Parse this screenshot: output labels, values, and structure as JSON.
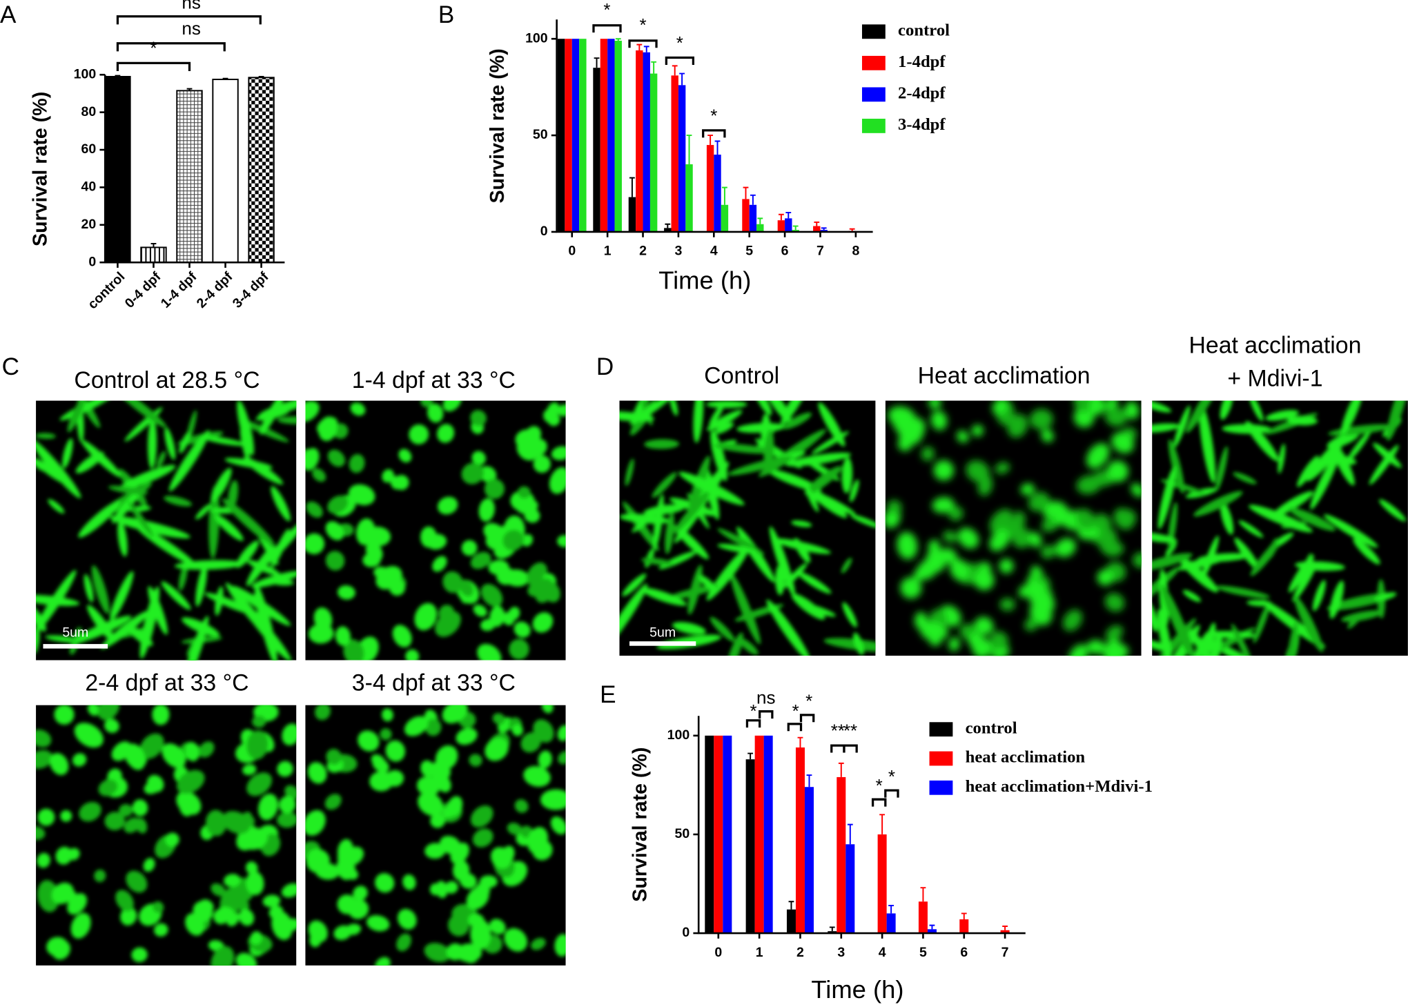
{
  "chart_data": [
    {
      "type": "bar",
      "panel": "A",
      "y_label": "Survival rate (%)",
      "categories": [
        "control",
        "0-4 dpf",
        "1-4 dpf",
        "2-4 dpf",
        "3-4 dpf"
      ],
      "values": [
        99,
        8,
        91.5,
        97.5,
        98.5
      ],
      "errors": [
        0.5,
        2,
        1,
        0.5,
        0.5
      ],
      "patterns": [
        "solid",
        "vlines",
        "grid",
        "empty",
        "checker"
      ],
      "color": "#000000",
      "ylim": [
        0,
        100
      ],
      "yticks": [
        0,
        20,
        40,
        60,
        80,
        100
      ],
      "annotations": [
        "ns",
        "ns",
        "*"
      ]
    },
    {
      "type": "grouped_bar",
      "panel": "B",
      "y_label": "Survival rate (%)",
      "x_label": "Time (h)",
      "categories": [
        "0",
        "1",
        "2",
        "3",
        "4",
        "5",
        "6",
        "7",
        "8"
      ],
      "series": [
        {
          "name": "control",
          "color": "#000000",
          "values": [
            100,
            85,
            18,
            2,
            0,
            0,
            0,
            0,
            0
          ],
          "errors": [
            0,
            5,
            10,
            2,
            0,
            0,
            0,
            0,
            0
          ]
        },
        {
          "name": "1-4dpf",
          "color": "#ff0000",
          "values": [
            100,
            100,
            94,
            81,
            45,
            17,
            6,
            3,
            0.5
          ],
          "errors": [
            0,
            0,
            3,
            5,
            5,
            6,
            3,
            2,
            1
          ]
        },
        {
          "name": "2-4dpf",
          "color": "#0000ff",
          "values": [
            100,
            100,
            93,
            76,
            40,
            14,
            7,
            1,
            0
          ],
          "errors": [
            0,
            0,
            3,
            6,
            7,
            5,
            3,
            1,
            0
          ]
        },
        {
          "name": "3-4dpf",
          "color": "#22e022",
          "values": [
            100,
            99,
            82,
            35,
            14,
            4,
            1,
            0,
            0
          ],
          "errors": [
            0,
            1,
            6,
            15,
            9,
            3,
            2,
            0,
            0
          ]
        }
      ],
      "ylim": [
        0,
        110
      ],
      "yticks": [
        0,
        50,
        100
      ],
      "legend": "upper right",
      "annotations": [
        "*",
        "*",
        "*",
        "*"
      ]
    },
    {
      "type": "grouped_bar",
      "panel": "E",
      "y_label": "Survival rate (%)",
      "x_label": "Time (h)",
      "categories": [
        "0",
        "1",
        "2",
        "3",
        "4",
        "5",
        "6",
        "7"
      ],
      "series": [
        {
          "name": "control",
          "color": "#000000",
          "values": [
            100,
            88,
            12,
            1,
            0,
            0,
            0,
            0
          ],
          "errors": [
            0,
            3,
            4,
            2,
            0,
            0,
            0,
            0
          ]
        },
        {
          "name": "heat acclimation",
          "color": "#ff0000",
          "values": [
            100,
            100,
            94,
            79,
            50,
            16,
            7,
            1.5
          ],
          "errors": [
            0,
            0,
            5,
            7,
            10,
            7,
            3,
            2
          ]
        },
        {
          "name": "heat acclimation+Mdivi-1",
          "color": "#0000ff",
          "values": [
            100,
            100,
            74,
            45,
            10,
            2,
            0,
            0
          ],
          "errors": [
            0,
            0,
            6,
            10,
            4,
            2,
            0,
            0
          ]
        }
      ],
      "ylim": [
        0,
        110
      ],
      "yticks": [
        0,
        50,
        100
      ],
      "legend": "upper right",
      "annotations": [
        "*",
        "ns",
        "*",
        "*",
        "**",
        "**",
        "*",
        "*"
      ]
    }
  ],
  "images": [
    {
      "panel": "C",
      "captions": [
        "Control at 28.5 °C",
        "1-4 dpf at 33 °C",
        "2-4 dpf at 33 °C",
        "3-4 dpf at 33 °C"
      ],
      "scale_bar": "5um"
    },
    {
      "panel": "D",
      "captions": [
        "Control",
        "Heat acclimation",
        "Heat acclimation",
        "+ Mdivi-1"
      ],
      "scale_bar": "5um"
    }
  ]
}
